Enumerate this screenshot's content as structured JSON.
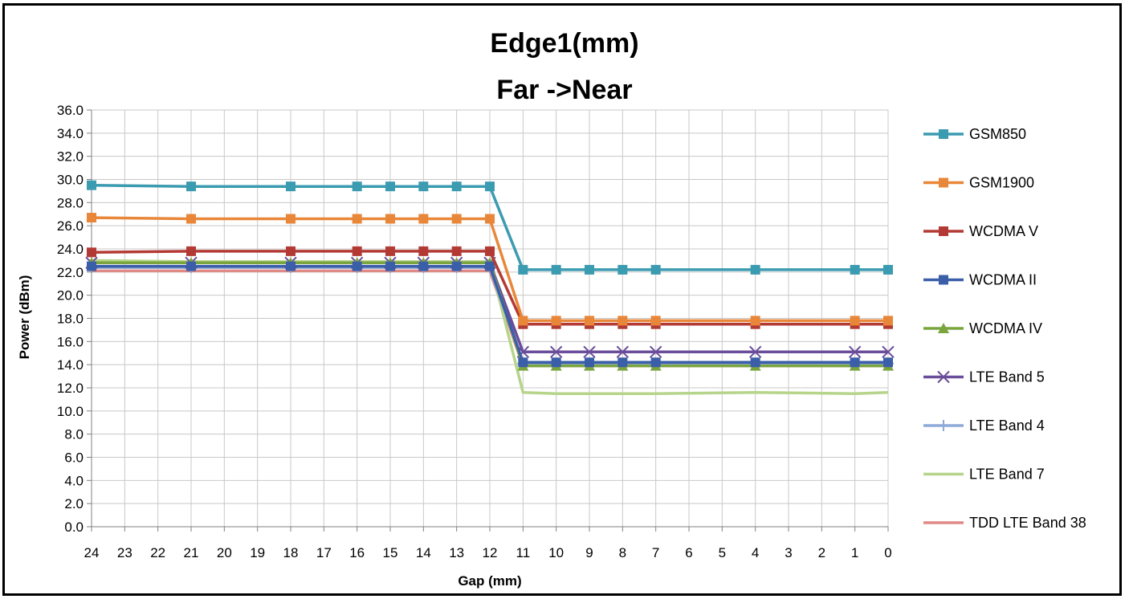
{
  "chart_data": {
    "type": "line",
    "title_line1": "Edge1(mm)",
    "title_line2": "Far ->Near",
    "xlabel": "Gap (mm)",
    "ylabel": "Power (dBm)",
    "x_axis_reversed": true,
    "xlim": [
      24,
      0
    ],
    "ylim": [
      0,
      36
    ],
    "y_tick_step": 2,
    "x_ticks": [
      "24",
      "23",
      "22",
      "21",
      "20",
      "19",
      "18",
      "17",
      "16",
      "15",
      "14",
      "13",
      "12",
      "11",
      "10",
      "9",
      "8",
      "7",
      "6",
      "5",
      "4",
      "3",
      "2",
      "1",
      "0"
    ],
    "y_ticks": [
      "0.0",
      "2.0",
      "4.0",
      "6.0",
      "8.0",
      "10.0",
      "12.0",
      "14.0",
      "16.0",
      "18.0",
      "20.0",
      "22.0",
      "24.0",
      "26.0",
      "28.0",
      "30.0",
      "32.0",
      "34.0",
      "36.0"
    ],
    "grid": true,
    "legend_position": "right",
    "x": [
      24,
      21,
      18,
      16,
      15,
      14,
      13,
      12,
      11,
      10,
      9,
      8,
      7,
      4,
      1,
      0
    ],
    "series": [
      {
        "name": "GSM850",
        "color": "#3b9bb0",
        "marker": "square",
        "values": [
          29.5,
          29.4,
          29.4,
          29.4,
          29.4,
          29.4,
          29.4,
          29.4,
          22.2,
          22.2,
          22.2,
          22.2,
          22.2,
          22.2,
          22.2,
          22.2
        ]
      },
      {
        "name": "GSM1900",
        "color": "#e8873a",
        "marker": "square",
        "values": [
          26.7,
          26.6,
          26.6,
          26.6,
          26.6,
          26.6,
          26.6,
          26.6,
          17.8,
          17.8,
          17.8,
          17.8,
          17.8,
          17.8,
          17.8,
          17.8
        ]
      },
      {
        "name": "WCDMA V",
        "color": "#b33a34",
        "marker": "square",
        "values": [
          23.7,
          23.8,
          23.8,
          23.8,
          23.8,
          23.8,
          23.8,
          23.8,
          17.5,
          17.5,
          17.5,
          17.5,
          17.5,
          17.5,
          17.5,
          17.5
        ]
      },
      {
        "name": "WCDMA II",
        "color": "#3b5ea8",
        "marker": "square",
        "values": [
          22.5,
          22.5,
          22.5,
          22.5,
          22.5,
          22.5,
          22.5,
          22.5,
          14.2,
          14.2,
          14.2,
          14.2,
          14.2,
          14.2,
          14.2,
          14.2
        ]
      },
      {
        "name": "WCDMA IV",
        "color": "#7aa53e",
        "marker": "triangle",
        "values": [
          22.8,
          22.8,
          22.8,
          22.8,
          22.8,
          22.8,
          22.8,
          22.8,
          13.9,
          13.9,
          13.9,
          13.9,
          13.9,
          13.9,
          13.9,
          13.9
        ]
      },
      {
        "name": "LTE Band 5",
        "color": "#6a4d9b",
        "marker": "x",
        "values": [
          22.8,
          22.8,
          22.8,
          22.8,
          22.8,
          22.8,
          22.8,
          22.8,
          15.1,
          15.1,
          15.1,
          15.1,
          15.1,
          15.1,
          15.1,
          15.1
        ]
      },
      {
        "name": "LTE Band 4",
        "color": "#8eaad8",
        "marker": "plus",
        "values": [
          22.4,
          22.4,
          22.4,
          22.4,
          22.4,
          22.4,
          22.4,
          22.4,
          14.1,
          14.1,
          14.1,
          14.1,
          14.1,
          14.1,
          14.1,
          14.1
        ]
      },
      {
        "name": "LTE Band 7",
        "color": "#b6d48a",
        "marker": "none",
        "values": [
          23.0,
          22.9,
          22.9,
          22.9,
          22.9,
          22.9,
          22.9,
          22.9,
          11.6,
          11.5,
          11.5,
          11.5,
          11.5,
          11.6,
          11.5,
          11.6
        ]
      },
      {
        "name": "TDD LTE Band 38",
        "color": "#e08a86",
        "marker": "none",
        "values": [
          22.1,
          22.1,
          22.1,
          22.1,
          22.1,
          22.1,
          22.1,
          22.1,
          13.9,
          13.9,
          13.9,
          13.9,
          13.9,
          13.9,
          13.9,
          13.9
        ]
      }
    ]
  }
}
